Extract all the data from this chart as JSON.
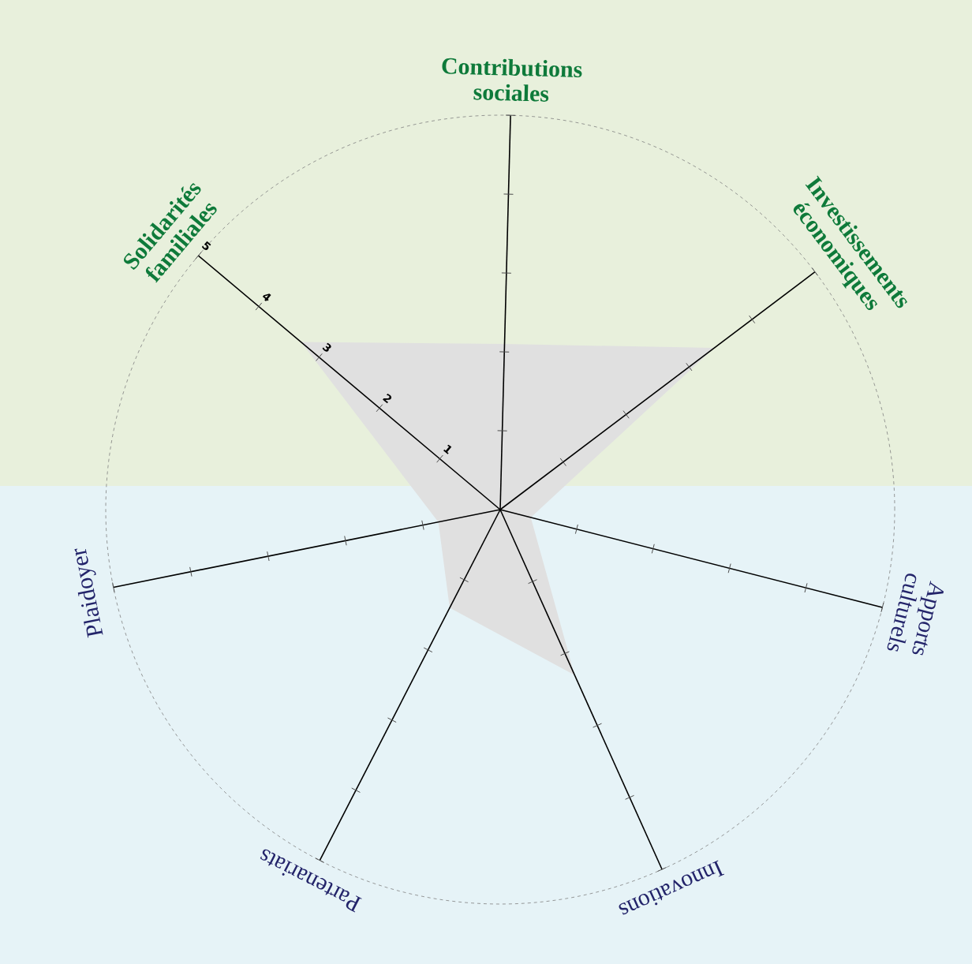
{
  "chart_data": {
    "type": "radar",
    "categories": [
      "Contributions sociales",
      "Investissements économiques",
      "Apports culturels",
      "Innovations",
      "Partenariats",
      "Plaidoyer",
      "Solidarités familiales"
    ],
    "series": [
      {
        "color": "#e0e0e0",
        "values": [
          2.1,
          3.4,
          0.4,
          2.3,
          1.4,
          0.8,
          3.3
        ]
      }
    ],
    "ylim": [
      0,
      5
    ],
    "yticks": [
      1,
      2,
      3,
      4,
      5
    ]
  }
}
